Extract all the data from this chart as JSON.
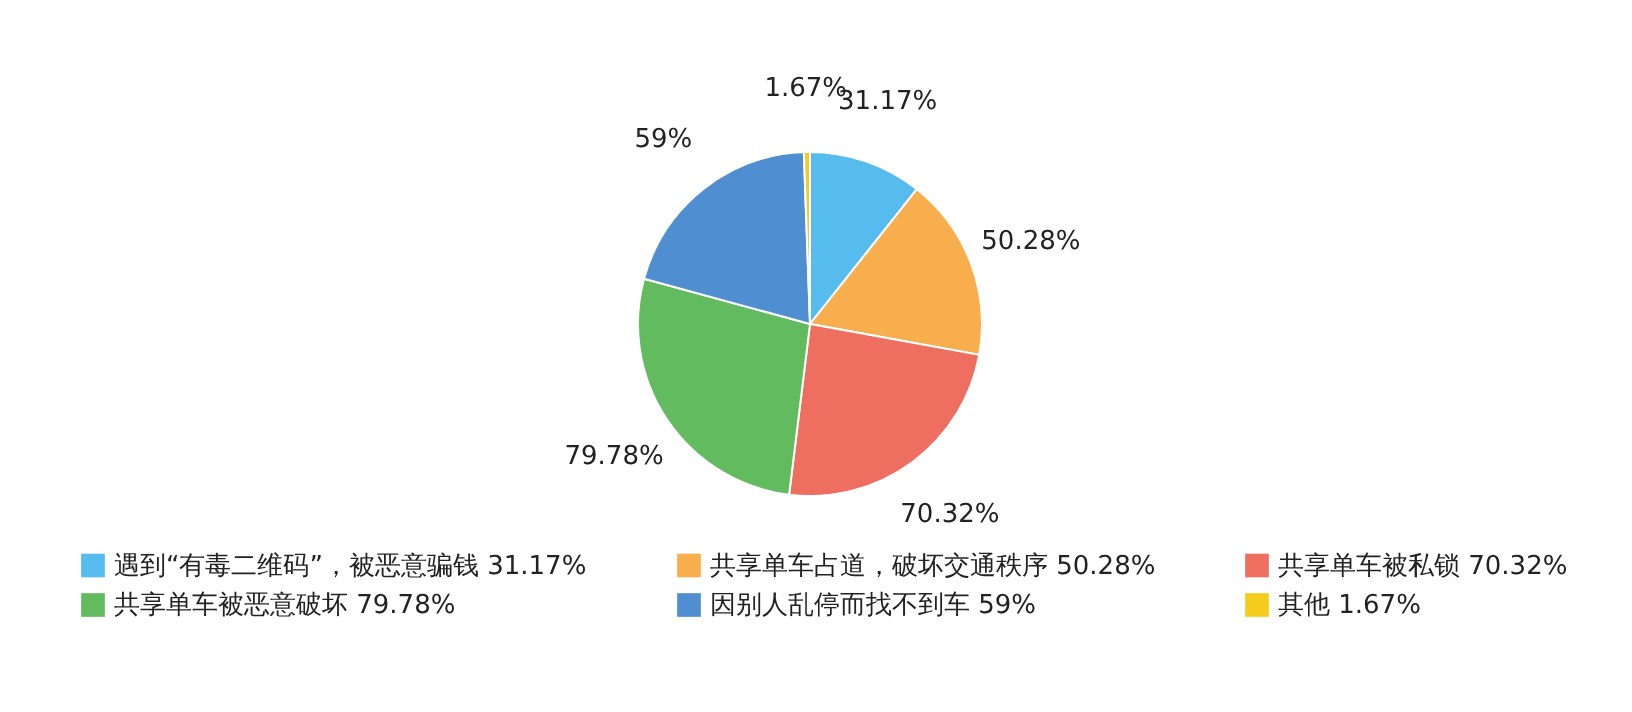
{
  "chart_data": {
    "type": "pie",
    "categories": [
      "遇到“有毒二维码”，被恶意骗钱",
      "共享单车占道，破坏交通秩序",
      "共享单车被私锁",
      "共享单车被恶意破坏",
      "因别人乱停而找不到车",
      "其他"
    ],
    "values": [
      31.17,
      50.28,
      70.32,
      79.78,
      59,
      1.67
    ],
    "colors": [
      "#56bced",
      "#f8ae4d",
      "#ee6e60",
      "#63bb5f",
      "#4f8fd1",
      "#f6cc1c"
    ],
    "value_labels": [
      "31.17%",
      "50.28%",
      "70.32%",
      "79.78%",
      "59%",
      "1.67%"
    ],
    "legend": "bottom"
  }
}
